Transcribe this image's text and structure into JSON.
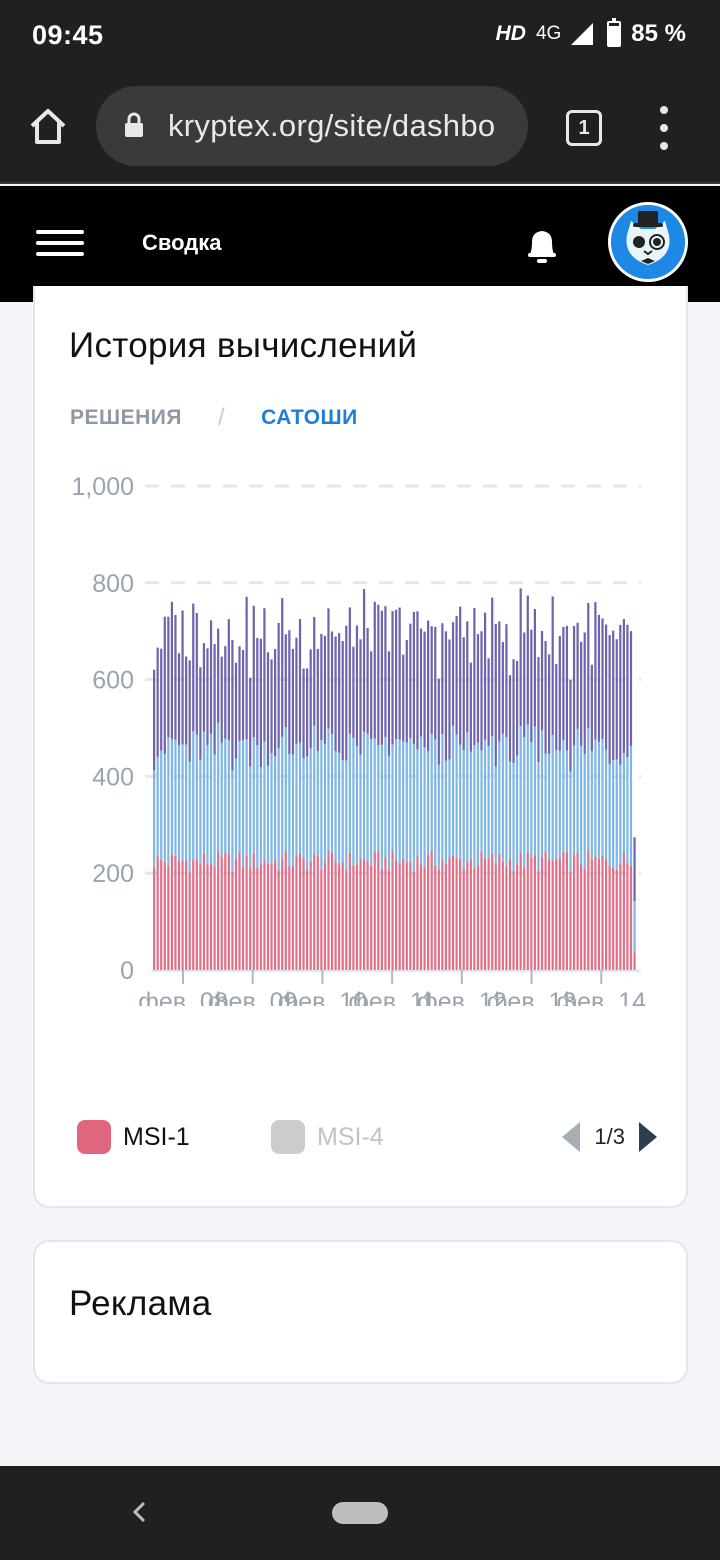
{
  "status_bar": {
    "time": "09:45",
    "hd": "HD",
    "network": "4G",
    "battery": "85 %"
  },
  "browser": {
    "url": "kryptex.org/site/dashbo",
    "tab_count": "1"
  },
  "header": {
    "title": "Сводка"
  },
  "history_card": {
    "title": "История вычислений",
    "tabs": [
      {
        "label": "РЕШЕНИЯ",
        "active": false
      },
      {
        "label": "САТОШИ",
        "active": true
      }
    ],
    "separator": "/"
  },
  "chart_data": {
    "type": "bar",
    "stacked": true,
    "ylim": [
      0,
      1000
    ],
    "yticks": [
      0,
      200,
      400,
      600,
      800,
      1000
    ],
    "ytick_labels": [
      "0",
      "200",
      "400",
      "600",
      "800",
      "1,000"
    ],
    "xtick_labels": [
      "фев. 08",
      "фев. 09",
      "фев. 10",
      "фев. 11",
      "фев. 12",
      "фев. 13",
      "фев. 14"
    ],
    "grid": "dashed horizontal",
    "bar_count": 136,
    "series": [
      {
        "name": "MSI-1",
        "color": "#e07088",
        "base": 225,
        "amp": 22
      },
      {
        "name": "MSI-4",
        "color": "#7db6e4",
        "base": 235,
        "amp": 35
      },
      {
        "name": "",
        "color": "#6e63ac",
        "base": 235,
        "amp": 60
      }
    ]
  },
  "legend": {
    "items": [
      {
        "label": "MSI-1",
        "color": "#e0667e",
        "active": true
      },
      {
        "label": "MSI-4",
        "color": "#cccccc",
        "active": false
      }
    ],
    "page": "1/3"
  },
  "ads_card": {
    "title": "Реклама"
  }
}
